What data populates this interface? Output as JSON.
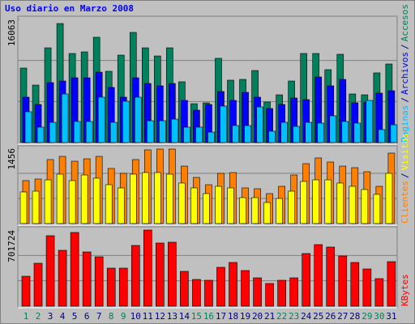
{
  "title": "Uso diario en Marzo 2008",
  "legend_separator": "/",
  "chart_data": [
    {
      "type": "bar",
      "ylim": [
        0,
        16063
      ],
      "yticks": [
        16063
      ],
      "series": [
        {
          "name": "Accesos",
          "color": "#00805c",
          "values": [
            9720,
            7500,
            12360,
            15530,
            11620,
            11830,
            13740,
            9300,
            11410,
            14370,
            12360,
            11300,
            12360,
            7930,
            5070,
            5180,
            10990,
            8140,
            8240,
            9400,
            5280,
            6230,
            8030,
            11620,
            11620,
            9510,
            11520,
            6340,
            6230,
            9090,
            10250
          ]
        },
        {
          "name": "Archivos",
          "color": "#0000ff",
          "values": [
            5920,
            4970,
            7820,
            8030,
            8450,
            8450,
            9190,
            7190,
            5920,
            8450,
            7710,
            7400,
            7710,
            5500,
            4230,
            4970,
            6660,
            5500,
            6550,
            5920,
            4440,
            4970,
            5810,
            5600,
            8560,
            7400,
            8240,
            5180,
            5280,
            6450,
            6760
          ]
        },
        {
          "name": "Paginas",
          "color": "#00c0ff",
          "values": [
            4020,
            2010,
            2640,
            6340,
            2750,
            2750,
            5920,
            2640,
            5390,
            5920,
            2850,
            2850,
            3060,
            2010,
            2010,
            1370,
            4760,
            2220,
            2220,
            4650,
            1480,
            2640,
            2110,
            2640,
            2540,
            3490,
            2750,
            2540,
            5500,
            1690,
            2320
          ]
        }
      ]
    },
    {
      "type": "bar",
      "ylim": [
        0,
        1456
      ],
      "yticks": [
        1456
      ],
      "series": [
        {
          "name": "Clientes",
          "color": "#ff8000",
          "values": [
            830,
            861,
            1237,
            1299,
            1205,
            1252,
            1299,
            1065,
            971,
            1237,
            1425,
            1440,
            1440,
            1111,
            892,
            751,
            971,
            986,
            689,
            673,
            579,
            720,
            939,
            1158,
            1268,
            1190,
            1111,
            1080,
            1002,
            720,
            1362
          ]
        },
        {
          "name": "Visitas",
          "color": "#ffff00",
          "values": [
            611,
            626,
            845,
            955,
            830,
            939,
            877,
            751,
            689,
            955,
            986,
            986,
            955,
            783,
            689,
            579,
            720,
            689,
            501,
            501,
            407,
            485,
            626,
            814,
            845,
            845,
            783,
            720,
            658,
            564,
            971
          ]
        }
      ]
    },
    {
      "type": "bar",
      "ylim": [
        0,
        701724
      ],
      "yticks": [
        701724
      ],
      "categories": [
        "1",
        "2",
        "3",
        "4",
        "5",
        "6",
        "7",
        "8",
        "9",
        "10",
        "11",
        "12",
        "13",
        "14",
        "15",
        "16",
        "17",
        "18",
        "19",
        "20",
        "21",
        "22",
        "23",
        "24",
        "25",
        "26",
        "27",
        "28",
        "29",
        "30",
        "31"
      ],
      "label_colors": [
        "#00805c",
        "#00805c",
        "#000080",
        "#000080",
        "#000080",
        "#000080",
        "#000080",
        "#00805c",
        "#00805c",
        "#000080",
        "#000080",
        "#000080",
        "#000080",
        "#000080",
        "#00805c",
        "#00805c",
        "#000080",
        "#000080",
        "#000080",
        "#000080",
        "#000080",
        "#00805c",
        "#00805c",
        "#000080",
        "#000080",
        "#000080",
        "#000080",
        "#000080",
        "#00805c",
        "#00805c",
        "#000080"
      ],
      "series": [
        {
          "name": "KBytes",
          "color": "#ff0000",
          "values": [
            276000,
            395700,
            649500,
            515000,
            679400,
            500100,
            455300,
            350800,
            350800,
            559900,
            701724,
            582300,
            589700,
            321000,
            246400,
            238900,
            358300,
            403100,
            328500,
            261300,
            209000,
            238900,
            261300,
            485200,
            567400,
            545000,
            462800,
            403100,
            343300,
            253800,
            410600
          ]
        }
      ]
    }
  ]
}
